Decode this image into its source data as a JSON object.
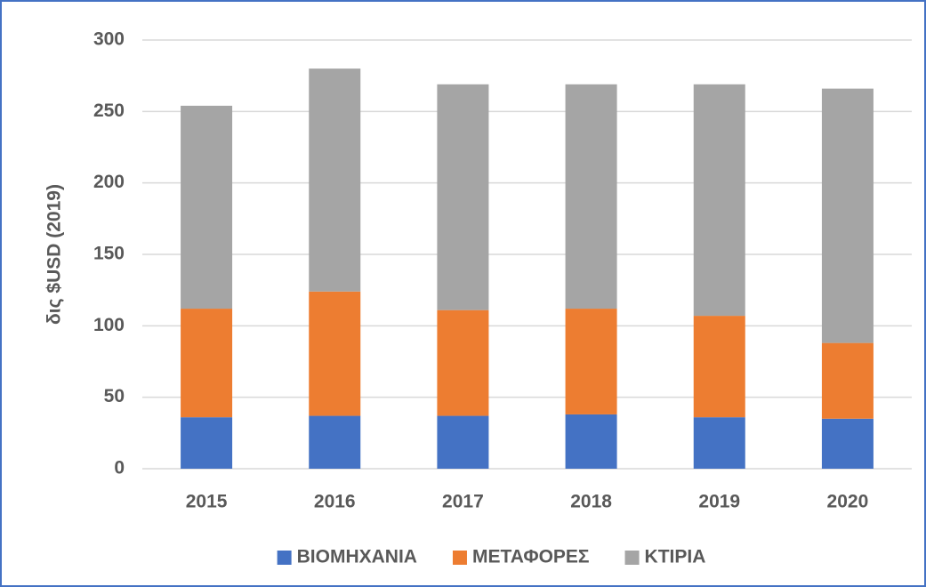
{
  "chart_data": {
    "type": "bar",
    "stacked": true,
    "y_label": "δις $USD (2019)",
    "categories": [
      "2015",
      "2016",
      "2017",
      "2018",
      "2019",
      "2020"
    ],
    "series": [
      {
        "name": "ΒΙΟΜΗΧΑΝΙΑ",
        "color": "#4472c4",
        "values": [
          36,
          37,
          37,
          38,
          36,
          35
        ]
      },
      {
        "name": "ΜΕΤΑΦΟΡΕΣ",
        "color": "#ed7d31",
        "values": [
          76,
          87,
          74,
          74,
          71,
          53
        ]
      },
      {
        "name": "ΚΤΙΡΙΑ",
        "color": "#a5a5a5",
        "values": [
          142,
          156,
          158,
          157,
          162,
          178
        ]
      }
    ],
    "ylim": [
      0,
      300
    ],
    "yticks": [
      0,
      50,
      100,
      150,
      200,
      250,
      300
    ],
    "grid": true,
    "legend": "bottom"
  }
}
